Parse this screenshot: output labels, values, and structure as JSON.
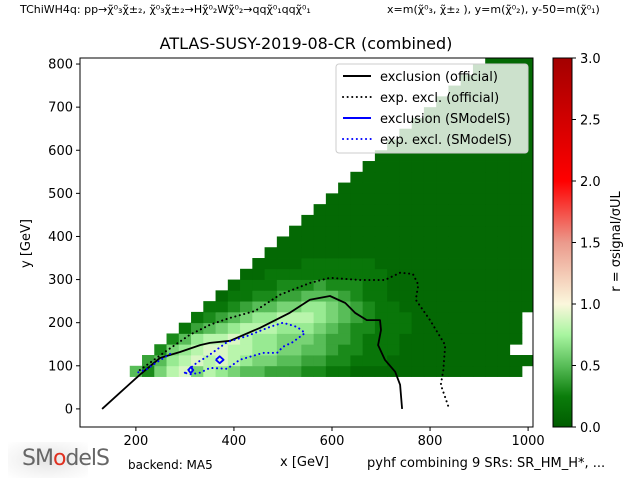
{
  "header": {
    "process": "TChiWH4q: pp→χ̃⁰₃χ̃±₂, χ̃⁰₃χ̃±₂→Hχ̃⁰₂Wχ̃⁰₂→qqχ̃⁰₁qqχ̃⁰₁",
    "axes_definition": "x=m(χ̃⁰₃, χ̃±₂ ), y=m(χ̃⁰₂), y-50=m(χ̃⁰₁)"
  },
  "footer": {
    "logo_text": "SModelS",
    "backend": "backend: MA5",
    "combination": "pyhf combining 9 SRs: SR_HM_H*, ..."
  },
  "chart_data": {
    "type": "heatmap",
    "title": "ATLAS-SUSY-2019-08-CR (combined)",
    "xlabel": "x [GeV]",
    "ylabel": "y [GeV]",
    "xlim": [
      86,
      1010
    ],
    "ylim": [
      -42,
      814
    ],
    "xticks": [
      200,
      400,
      600,
      800,
      1000
    ],
    "yticks": [
      0,
      100,
      200,
      300,
      400,
      500,
      600,
      700,
      800
    ],
    "colorbar": {
      "label": "r = σsignal/σUL",
      "range": [
        0,
        3
      ],
      "ticks": [
        "0.0",
        "0.5",
        "1.0",
        "1.5",
        "2.0",
        "2.5",
        "3.0"
      ],
      "colormap": [
        [
          0,
          "#005c00"
        ],
        [
          0.25,
          "#0b7d0b"
        ],
        [
          0.5,
          "#58bd58"
        ],
        [
          0.75,
          "#a8f5a0"
        ],
        [
          1.0,
          "#fbf7dc"
        ],
        [
          1.5,
          "#eb9a8c"
        ],
        [
          2.0,
          "#ff0000"
        ],
        [
          3.0,
          "#a30000"
        ]
      ]
    },
    "grid": {
      "x_centers_start": 150,
      "x_step": 25,
      "y_centers_start": 87.5,
      "y_step": 25,
      "value_encoding": "digit/10 = r, '.' = no data",
      "rows_bottom_to_top": [
        "..53689687655444332211111111111111..",
        "...45789898766554433222111111111111..",
        "....36789988776655433222111111111..",
        ".....35788987766654432221111111111.",
        "......2456788877765433222111111111.",
        ".......234567788876543222111111111.",
        "........223455667765432211111111111",
        ".........12233445554322111111111111",
        "..........1222333433322111111111111",
        "...........112222222222111111111111",
        "............11112222221111111111111",
        ".............1111111111111111111111",
        "..............111111111111111111111",
        "...............11111111111111111111",
        "................1111111111111111111",
        ".................111111111111111111",
        "..................11111111111111111",
        "...................1111111111111111",
        "....................111111111111111",
        ".....................11111111111111",
        "......................1111111111111",
        ".......................111111111111",
        "........................11111111111",
        ".........................1111111111",
        "..........................111111111",
        "...........................11111111",
        "............................1111111",
        ".............................111111",
        "..............................11111",
        "...............................1111"
      ]
    },
    "legend": {
      "position": "top-right",
      "entries": [
        "exclusion (official)",
        "exp. excl. (official)",
        "exclusion (SModelS)",
        "exp. excl. (SModelS)"
      ]
    },
    "series": [
      {
        "name": "exclusion (official)",
        "color": "#000000",
        "style": "solid",
        "segments": [
          [
            [
              131,
              0
            ],
            [
              167,
              37
            ],
            [
              208,
              79
            ],
            [
              249,
              118
            ],
            [
              290,
              132
            ],
            [
              331,
              148
            ],
            [
              351,
              153
            ],
            [
              392,
              158
            ],
            [
              453,
              188
            ],
            [
              514,
              223
            ],
            [
              555,
              253
            ],
            [
              596,
              262
            ],
            [
              627,
              246
            ],
            [
              647,
              223
            ],
            [
              671,
              206
            ],
            [
              698,
              206
            ],
            [
              700,
              183
            ],
            [
              694,
              148
            ],
            [
              708,
              114
            ],
            [
              729,
              86
            ],
            [
              739,
              56
            ],
            [
              743,
              0
            ]
          ]
        ]
      },
      {
        "name": "exp. excl. (official)",
        "color": "#000000",
        "style": "dotted",
        "segments": [
          [
            [
              208,
              90
            ],
            [
              259,
              132
            ],
            [
              310,
              172
            ],
            [
              351,
              195
            ],
            [
              392,
              211
            ],
            [
              443,
              227
            ],
            [
              494,
              265
            ],
            [
              555,
              292
            ],
            [
              596,
              304
            ],
            [
              657,
              299
            ],
            [
              708,
              299
            ],
            [
              739,
              316
            ],
            [
              765,
              313
            ],
            [
              776,
              288
            ],
            [
              771,
              253
            ],
            [
              800,
              206
            ],
            [
              831,
              148
            ],
            [
              827,
              90
            ],
            [
              822,
              56
            ],
            [
              839,
              0
            ]
          ]
        ]
      },
      {
        "name": "exclusion (SModelS)",
        "color": "#0000ff",
        "style": "solid",
        "segments": [
          [
            [
              363,
              114
            ],
            [
              371,
              122
            ],
            [
              379,
              114
            ],
            [
              371,
              106
            ],
            [
              363,
              114
            ]
          ],
          [
            [
              307,
              90
            ],
            [
              312,
              97
            ],
            [
              317,
              90
            ],
            [
              312,
              83
            ],
            [
              307,
              90
            ]
          ]
        ]
      },
      {
        "name": "exp. excl. (SModelS)",
        "color": "#0000ff",
        "style": "dotted",
        "segments": [
          [
            [
              205,
              85
            ],
            [
              222,
              92
            ],
            [
              245,
              110
            ],
            [
              273,
              130
            ]
          ],
          [
            [
              300,
              84
            ],
            [
              324,
              107
            ],
            [
              345,
              121
            ],
            [
              386,
              155
            ],
            [
              427,
              169
            ],
            [
              473,
              190
            ],
            [
              500,
              200
            ],
            [
              529,
              190
            ],
            [
              545,
              176
            ],
            [
              520,
              155
            ],
            [
              500,
              144
            ],
            [
              488,
              130
            ],
            [
              459,
              130
            ],
            [
              412,
              114
            ],
            [
              386,
              93
            ],
            [
              351,
              95
            ],
            [
              331,
              84
            ],
            [
              310,
              80
            ],
            [
              300,
              84
            ]
          ]
        ]
      }
    ]
  }
}
